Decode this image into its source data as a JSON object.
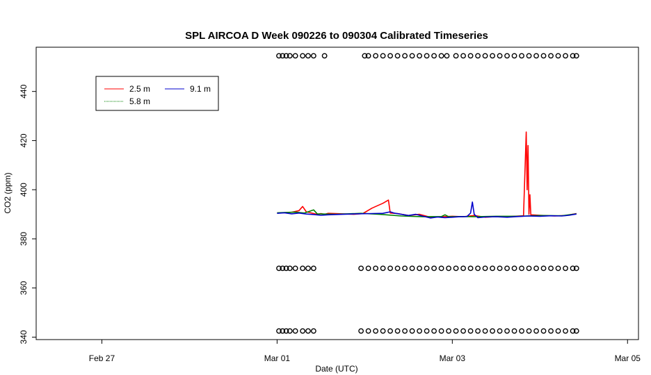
{
  "chart_data": {
    "type": "line",
    "title": "SPL AIRCOA D  Week 090226 to 090304  Calibrated Timeseries",
    "xlabel": "Date (UTC)",
    "ylabel": "CO2 (ppm)",
    "xlim": [
      "2009-02-26T06:00",
      "2009-03-05T03:00"
    ],
    "ylim": [
      339,
      458
    ],
    "x_ticks": [
      {
        "value": "2009-02-27T00:00",
        "label": "Feb 27"
      },
      {
        "value": "2009-03-01T00:00",
        "label": "Mar 01"
      },
      {
        "value": "2009-03-03T00:00",
        "label": "Mar 03"
      },
      {
        "value": "2009-03-05T00:00",
        "label": "Mar 05"
      }
    ],
    "y_ticks": [
      340,
      360,
      380,
      400,
      420,
      440
    ],
    "legend": {
      "position": "top-left",
      "entries": [
        {
          "label": "2.5 m",
          "color": "#ff0000"
        },
        {
          "label": "9.1 m",
          "color": "#0000cc"
        },
        {
          "label": "5.8 m",
          "color": "#008000"
        }
      ]
    },
    "series": [
      {
        "name": "2.5 m",
        "color": "#ff0000",
        "points": [
          [
            "2009-03-01T00:00",
            390.5
          ],
          [
            "2009-03-01T04:00",
            390.8
          ],
          [
            "2009-03-01T06:00",
            391.5
          ],
          [
            "2009-03-01T07:00",
            393.2
          ],
          [
            "2009-03-01T08:00",
            391.0
          ],
          [
            "2009-03-01T11:00",
            390.0
          ],
          [
            "2009-03-01T12:00",
            390.3
          ],
          [
            "2009-03-01T13:00",
            390.0
          ],
          [
            "2009-03-01T14:00",
            390.4
          ],
          [
            "2009-03-01T18:00",
            390.2
          ],
          [
            "2009-03-01T21:00",
            390.0
          ],
          [
            "2009-03-01T22:00",
            390.1
          ],
          [
            "2009-03-01T23:30",
            390.3
          ],
          [
            "2009-03-02T02:00",
            392.5
          ],
          [
            "2009-03-02T05:00",
            394.5
          ],
          [
            "2009-03-02T06:30",
            395.8
          ],
          [
            "2009-03-02T07:00",
            390.5
          ],
          [
            "2009-03-02T09:00",
            390.3
          ],
          [
            "2009-03-02T12:00",
            389.5
          ],
          [
            "2009-03-02T15:00",
            390.0
          ],
          [
            "2009-03-02T18:00",
            388.8
          ],
          [
            "2009-03-02T21:00",
            389.0
          ],
          [
            "2009-03-03T00:00",
            389.2
          ],
          [
            "2009-03-03T03:00",
            389.0
          ],
          [
            "2009-03-03T06:00",
            389.5
          ],
          [
            "2009-03-03T09:00",
            388.8
          ],
          [
            "2009-03-03T12:00",
            389.1
          ],
          [
            "2009-03-03T15:00",
            389.0
          ],
          [
            "2009-03-03T19:30",
            389.4
          ],
          [
            "2009-03-03T20:00",
            412.0
          ],
          [
            "2009-03-03T20:15",
            423.5
          ],
          [
            "2009-03-03T20:30",
            400.0
          ],
          [
            "2009-03-03T20:45",
            418.0
          ],
          [
            "2009-03-03T21:00",
            390.0
          ],
          [
            "2009-03-03T21:15",
            398.0
          ],
          [
            "2009-03-03T21:30",
            389.8
          ],
          [
            "2009-03-04T00:00",
            389.6
          ],
          [
            "2009-03-04T04:00",
            389.3
          ],
          [
            "2009-03-04T07:00",
            389.5
          ],
          [
            "2009-03-04T10:00",
            390.3
          ]
        ]
      },
      {
        "name": "5.8 m",
        "color": "#008000",
        "points": [
          [
            "2009-03-01T00:00",
            390.6
          ],
          [
            "2009-03-01T05:00",
            390.9
          ],
          [
            "2009-03-01T07:30",
            390.5
          ],
          [
            "2009-03-01T10:00",
            391.8
          ],
          [
            "2009-03-01T11:00",
            390.2
          ],
          [
            "2009-03-01T16:00",
            390.0
          ],
          [
            "2009-03-01T23:00",
            390.4
          ],
          [
            "2009-03-02T04:00",
            390.0
          ],
          [
            "2009-03-02T10:00",
            389.3
          ],
          [
            "2009-03-02T16:00",
            389.0
          ],
          [
            "2009-03-02T21:00",
            389.1
          ],
          [
            "2009-03-02T22:00",
            389.8
          ],
          [
            "2009-03-02T23:00",
            389.0
          ],
          [
            "2009-03-03T03:00",
            389.1
          ],
          [
            "2009-03-03T06:00",
            389.0
          ],
          [
            "2009-03-03T12:00",
            389.2
          ],
          [
            "2009-03-03T18:00",
            389.2
          ],
          [
            "2009-03-04T00:00",
            389.5
          ],
          [
            "2009-03-04T06:00",
            389.4
          ],
          [
            "2009-03-04T10:00",
            390.2
          ]
        ]
      },
      {
        "name": "9.1 m",
        "color": "#0000cc",
        "points": [
          [
            "2009-03-01T00:00",
            390.4
          ],
          [
            "2009-03-01T02:00",
            390.6
          ],
          [
            "2009-03-01T04:00",
            390.2
          ],
          [
            "2009-03-01T06:00",
            390.5
          ],
          [
            "2009-03-01T08:00",
            390.1
          ],
          [
            "2009-03-01T10:00",
            389.9
          ],
          [
            "2009-03-01T12:00",
            389.6
          ],
          [
            "2009-03-01T14:00",
            389.8
          ],
          [
            "2009-03-01T18:00",
            390.0
          ],
          [
            "2009-03-01T22:00",
            390.2
          ],
          [
            "2009-03-02T02:00",
            390.3
          ],
          [
            "2009-03-02T05:00",
            390.4
          ],
          [
            "2009-03-02T07:00",
            391.0
          ],
          [
            "2009-03-02T08:00",
            390.5
          ],
          [
            "2009-03-02T10:00",
            390.0
          ],
          [
            "2009-03-02T12:00",
            389.5
          ],
          [
            "2009-03-02T14:00",
            390.0
          ],
          [
            "2009-03-02T16:00",
            389.2
          ],
          [
            "2009-03-02T18:00",
            388.5
          ],
          [
            "2009-03-02T20:00",
            388.9
          ],
          [
            "2009-03-02T22:00",
            388.6
          ],
          [
            "2009-03-03T00:00",
            388.8
          ],
          [
            "2009-03-03T02:00",
            389.0
          ],
          [
            "2009-03-03T04:00",
            389.1
          ],
          [
            "2009-03-03T05:00",
            390.5
          ],
          [
            "2009-03-03T05:30",
            395.0
          ],
          [
            "2009-03-03T06:00",
            390.0
          ],
          [
            "2009-03-03T07:00",
            388.6
          ],
          [
            "2009-03-03T09:00",
            388.9
          ],
          [
            "2009-03-03T12:00",
            389.0
          ],
          [
            "2009-03-03T15:00",
            388.8
          ],
          [
            "2009-03-03T18:00",
            389.1
          ],
          [
            "2009-03-03T21:00",
            389.3
          ],
          [
            "2009-03-04T00:00",
            389.2
          ],
          [
            "2009-03-04T03:00",
            389.4
          ],
          [
            "2009-03-04T06:00",
            389.3
          ],
          [
            "2009-03-04T08:00",
            389.6
          ],
          [
            "2009-03-04T10:00",
            390.1
          ]
        ]
      }
    ],
    "marker_rows": [
      {
        "y": 454.5,
        "x": [
          "2009-03-01T00:30",
          "2009-03-01T01:30",
          "2009-03-01T02:30",
          "2009-03-01T03:30",
          "2009-03-01T05:00",
          "2009-03-01T07:00",
          "2009-03-01T08:30",
          "2009-03-01T10:00",
          "2009-03-01T13:00",
          "2009-03-02T00:00",
          "2009-03-02T01:00",
          "2009-03-02T03:00",
          "2009-03-02T05:00",
          "2009-03-02T07:00",
          "2009-03-02T09:00",
          "2009-03-02T11:00",
          "2009-03-02T13:00",
          "2009-03-02T15:00",
          "2009-03-02T17:00",
          "2009-03-02T19:00",
          "2009-03-02T21:00",
          "2009-03-02T22:30",
          "2009-03-03T01:00",
          "2009-03-03T03:00",
          "2009-03-03T05:00",
          "2009-03-03T07:00",
          "2009-03-03T09:00",
          "2009-03-03T11:00",
          "2009-03-03T13:00",
          "2009-03-03T15:00",
          "2009-03-03T17:00",
          "2009-03-03T19:00",
          "2009-03-03T21:00",
          "2009-03-03T23:00",
          "2009-03-04T01:00",
          "2009-03-04T03:00",
          "2009-03-04T05:00",
          "2009-03-04T07:00",
          "2009-03-04T09:00",
          "2009-03-04T10:00"
        ]
      },
      {
        "y": 368,
        "x": [
          "2009-03-01T00:30",
          "2009-03-01T01:30",
          "2009-03-01T02:30",
          "2009-03-01T03:30",
          "2009-03-01T05:00",
          "2009-03-01T07:00",
          "2009-03-01T08:30",
          "2009-03-01T10:00",
          "2009-03-01T23:00",
          "2009-03-02T01:00",
          "2009-03-02T03:00",
          "2009-03-02T05:00",
          "2009-03-02T07:00",
          "2009-03-02T09:00",
          "2009-03-02T11:00",
          "2009-03-02T13:00",
          "2009-03-02T15:00",
          "2009-03-02T17:00",
          "2009-03-02T19:00",
          "2009-03-02T21:00",
          "2009-03-02T23:00",
          "2009-03-03T01:00",
          "2009-03-03T03:00",
          "2009-03-03T05:00",
          "2009-03-03T07:00",
          "2009-03-03T09:00",
          "2009-03-03T11:00",
          "2009-03-03T13:00",
          "2009-03-03T15:00",
          "2009-03-03T17:00",
          "2009-03-03T19:00",
          "2009-03-03T21:00",
          "2009-03-03T23:00",
          "2009-03-04T01:00",
          "2009-03-04T03:00",
          "2009-03-04T05:00",
          "2009-03-04T07:00",
          "2009-03-04T09:00",
          "2009-03-04T10:00"
        ]
      },
      {
        "y": 342.5,
        "x": [
          "2009-03-01T00:30",
          "2009-03-01T01:30",
          "2009-03-01T02:30",
          "2009-03-01T03:30",
          "2009-03-01T05:00",
          "2009-03-01T07:00",
          "2009-03-01T08:30",
          "2009-03-01T10:00",
          "2009-03-01T23:00",
          "2009-03-02T01:00",
          "2009-03-02T03:00",
          "2009-03-02T05:00",
          "2009-03-02T07:00",
          "2009-03-02T09:00",
          "2009-03-02T11:00",
          "2009-03-02T13:00",
          "2009-03-02T15:00",
          "2009-03-02T17:00",
          "2009-03-02T19:00",
          "2009-03-02T21:00",
          "2009-03-02T23:00",
          "2009-03-03T01:00",
          "2009-03-03T03:00",
          "2009-03-03T05:00",
          "2009-03-03T07:00",
          "2009-03-03T09:00",
          "2009-03-03T11:00",
          "2009-03-03T13:00",
          "2009-03-03T15:00",
          "2009-03-03T17:00",
          "2009-03-03T19:00",
          "2009-03-03T21:00",
          "2009-03-03T23:00",
          "2009-03-04T01:00",
          "2009-03-04T03:00",
          "2009-03-04T05:00",
          "2009-03-04T07:00",
          "2009-03-04T09:00",
          "2009-03-04T10:00"
        ]
      }
    ]
  }
}
